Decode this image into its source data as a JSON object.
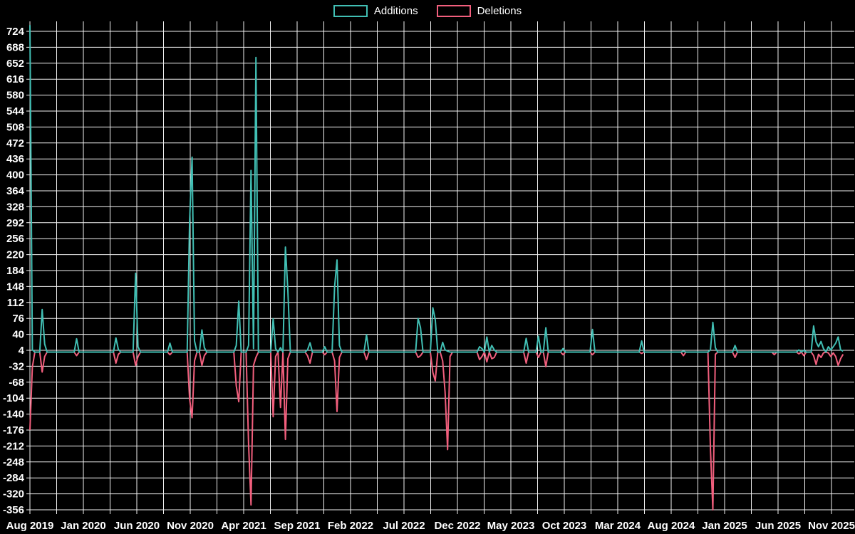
{
  "legend": {
    "additions_label": "Additions",
    "deletions_label": "Deletions"
  },
  "colors": {
    "additions": "#41bfb4",
    "deletions": "#f25f7d",
    "background": "#000000",
    "grid": "#f2f2f2",
    "text": "#ffffff"
  },
  "chart_data": {
    "type": "line",
    "title": "",
    "xlabel": "",
    "ylabel": "",
    "legend_position": "top-center",
    "grid": true,
    "x_tick_labels": [
      "Aug 2019",
      "Jan 2020",
      "Jun 2020",
      "Nov 2020",
      "Apr 2021",
      "Sep 2021",
      "Feb 2022",
      "Jul 2022",
      "Dec 2022",
      "May 2023",
      "Oct 2023",
      "Mar 2024",
      "Aug 2024",
      "Jan 2025",
      "Jun 2025",
      "Nov 2025"
    ],
    "y_ticks": [
      724,
      688,
      652,
      616,
      580,
      544,
      508,
      472,
      436,
      400,
      364,
      328,
      292,
      256,
      220,
      184,
      148,
      112,
      76,
      40,
      4,
      -32,
      -68,
      -104,
      -140,
      -176,
      -212,
      -248,
      -284,
      -320,
      -356
    ],
    "ylim": [
      -356,
      738
    ],
    "x_unit": "week",
    "weeks_total": 332,
    "series": [
      {
        "name": "Additions",
        "key": "a"
      },
      {
        "name": "Deletions",
        "key": "d"
      }
    ],
    "note": "Weekly additions/deletions; weeks not listed in events are 0 for both series.",
    "events": [
      [
        0,
        738,
        -176
      ],
      [
        1,
        5,
        -34
      ],
      [
        5,
        96,
        -45
      ],
      [
        6,
        18,
        -10
      ],
      [
        19,
        30,
        -8
      ],
      [
        35,
        32,
        -25
      ],
      [
        36,
        6,
        -5
      ],
      [
        43,
        178,
        -30
      ],
      [
        44,
        12,
        -10
      ],
      [
        57,
        20,
        -6
      ],
      [
        65,
        295,
        -105
      ],
      [
        66,
        440,
        -148
      ],
      [
        67,
        25,
        -20
      ],
      [
        70,
        50,
        -30
      ],
      [
        71,
        10,
        -8
      ],
      [
        84,
        15,
        -76
      ],
      [
        85,
        115,
        -112
      ],
      [
        89,
        15,
        -208
      ],
      [
        90,
        410,
        -345
      ],
      [
        91,
        8,
        -30
      ],
      [
        92,
        665,
        -12
      ],
      [
        99,
        75,
        -146
      ],
      [
        100,
        8,
        -10
      ],
      [
        102,
        10,
        -125
      ],
      [
        104,
        237,
        -197
      ],
      [
        105,
        140,
        -15
      ],
      [
        113,
        5,
        -8
      ],
      [
        114,
        21,
        -25
      ],
      [
        120,
        12,
        -6
      ],
      [
        124,
        147,
        -20
      ],
      [
        125,
        208,
        -134
      ],
      [
        126,
        15,
        -12
      ],
      [
        137,
        39,
        -17
      ],
      [
        158,
        76,
        -12
      ],
      [
        159,
        55,
        -8
      ],
      [
        164,
        100,
        -46
      ],
      [
        165,
        73,
        -65
      ],
      [
        168,
        22,
        -20
      ],
      [
        169,
        5,
        -91
      ],
      [
        170,
        2,
        -220
      ],
      [
        171,
        0,
        -10
      ],
      [
        183,
        12,
        -17
      ],
      [
        184,
        8,
        -10
      ],
      [
        186,
        34,
        -22
      ],
      [
        188,
        15,
        -15
      ],
      [
        189,
        5,
        -12
      ],
      [
        202,
        31,
        -25
      ],
      [
        207,
        36,
        -12
      ],
      [
        210,
        55,
        -33
      ],
      [
        217,
        8,
        -6
      ],
      [
        229,
        51,
        -6
      ],
      [
        249,
        25,
        -3
      ],
      [
        266,
        2,
        -8
      ],
      [
        277,
        5,
        -218
      ],
      [
        278,
        67,
        -356
      ],
      [
        279,
        10,
        -5
      ],
      [
        287,
        15,
        -12
      ],
      [
        303,
        0,
        -6
      ],
      [
        313,
        5,
        -4
      ],
      [
        315,
        4,
        -8
      ],
      [
        319,
        59,
        -8
      ],
      [
        320,
        23,
        -28
      ],
      [
        321,
        12,
        -5
      ],
      [
        322,
        24,
        -12
      ],
      [
        323,
        8,
        -2
      ],
      [
        325,
        12,
        -2
      ],
      [
        326,
        5,
        -10
      ],
      [
        327,
        12,
        -2
      ],
      [
        328,
        20,
        -10
      ],
      [
        329,
        34,
        -30
      ],
      [
        330,
        5,
        -15
      ],
      [
        331,
        2,
        -5
      ]
    ]
  }
}
